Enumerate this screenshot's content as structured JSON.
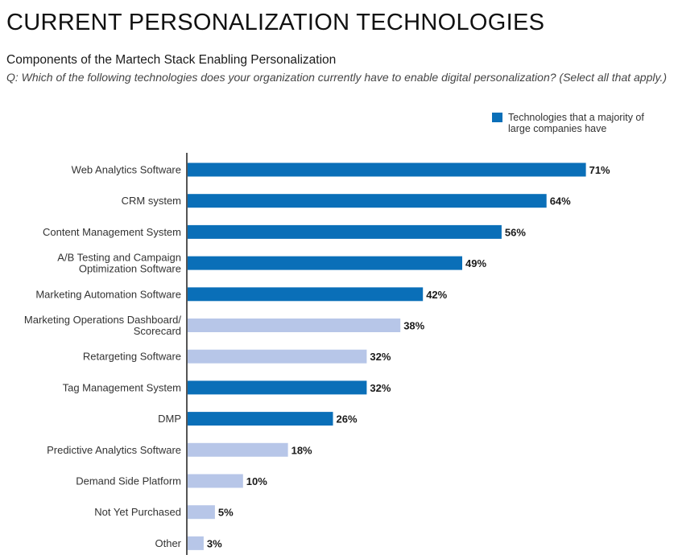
{
  "header": {
    "title": "CURRENT PERSONALIZATION TECHNOLOGIES",
    "subtitle": "Components of the Martech Stack Enabling Personalization",
    "question": "Q: Which of the following technologies does your organization currently have to enable digital personalization? (Select all that apply.)"
  },
  "colors": {
    "majority": "#0a6fb8",
    "other": "#b7c6e8",
    "axis": "#555555"
  },
  "legend": {
    "label": "Technologies that a majority of large companies have"
  },
  "chart_data": {
    "type": "bar",
    "orientation": "horizontal",
    "title": "Components of the Martech Stack Enabling Personalization",
    "unit": "%",
    "xlim": [
      0,
      75
    ],
    "categories": [
      [
        "Web Analytics Software"
      ],
      [
        "CRM system"
      ],
      [
        "Content Management System"
      ],
      [
        "A/B Testing and Campaign",
        "Optimization Software"
      ],
      [
        "Marketing Automation Software"
      ],
      [
        "Marketing Operations Dashboard/",
        "Scorecard"
      ],
      [
        "Retargeting Software"
      ],
      [
        "Tag Management System"
      ],
      [
        "DMP"
      ],
      [
        "Predictive Analytics Software"
      ],
      [
        "Demand Side Platform"
      ],
      [
        "Not Yet Purchased"
      ],
      [
        "Other"
      ]
    ],
    "values": [
      71,
      64,
      56,
      49,
      42,
      38,
      32,
      32,
      26,
      18,
      10,
      5,
      3
    ],
    "value_labels": [
      "71%",
      "64%",
      "56%",
      "49%",
      "42%",
      "38%",
      "32%",
      "32%",
      "26%",
      "18%",
      "10%",
      "5%",
      "3%"
    ],
    "majority": [
      true,
      true,
      true,
      true,
      true,
      false,
      false,
      true,
      true,
      false,
      false,
      false,
      false
    ]
  }
}
